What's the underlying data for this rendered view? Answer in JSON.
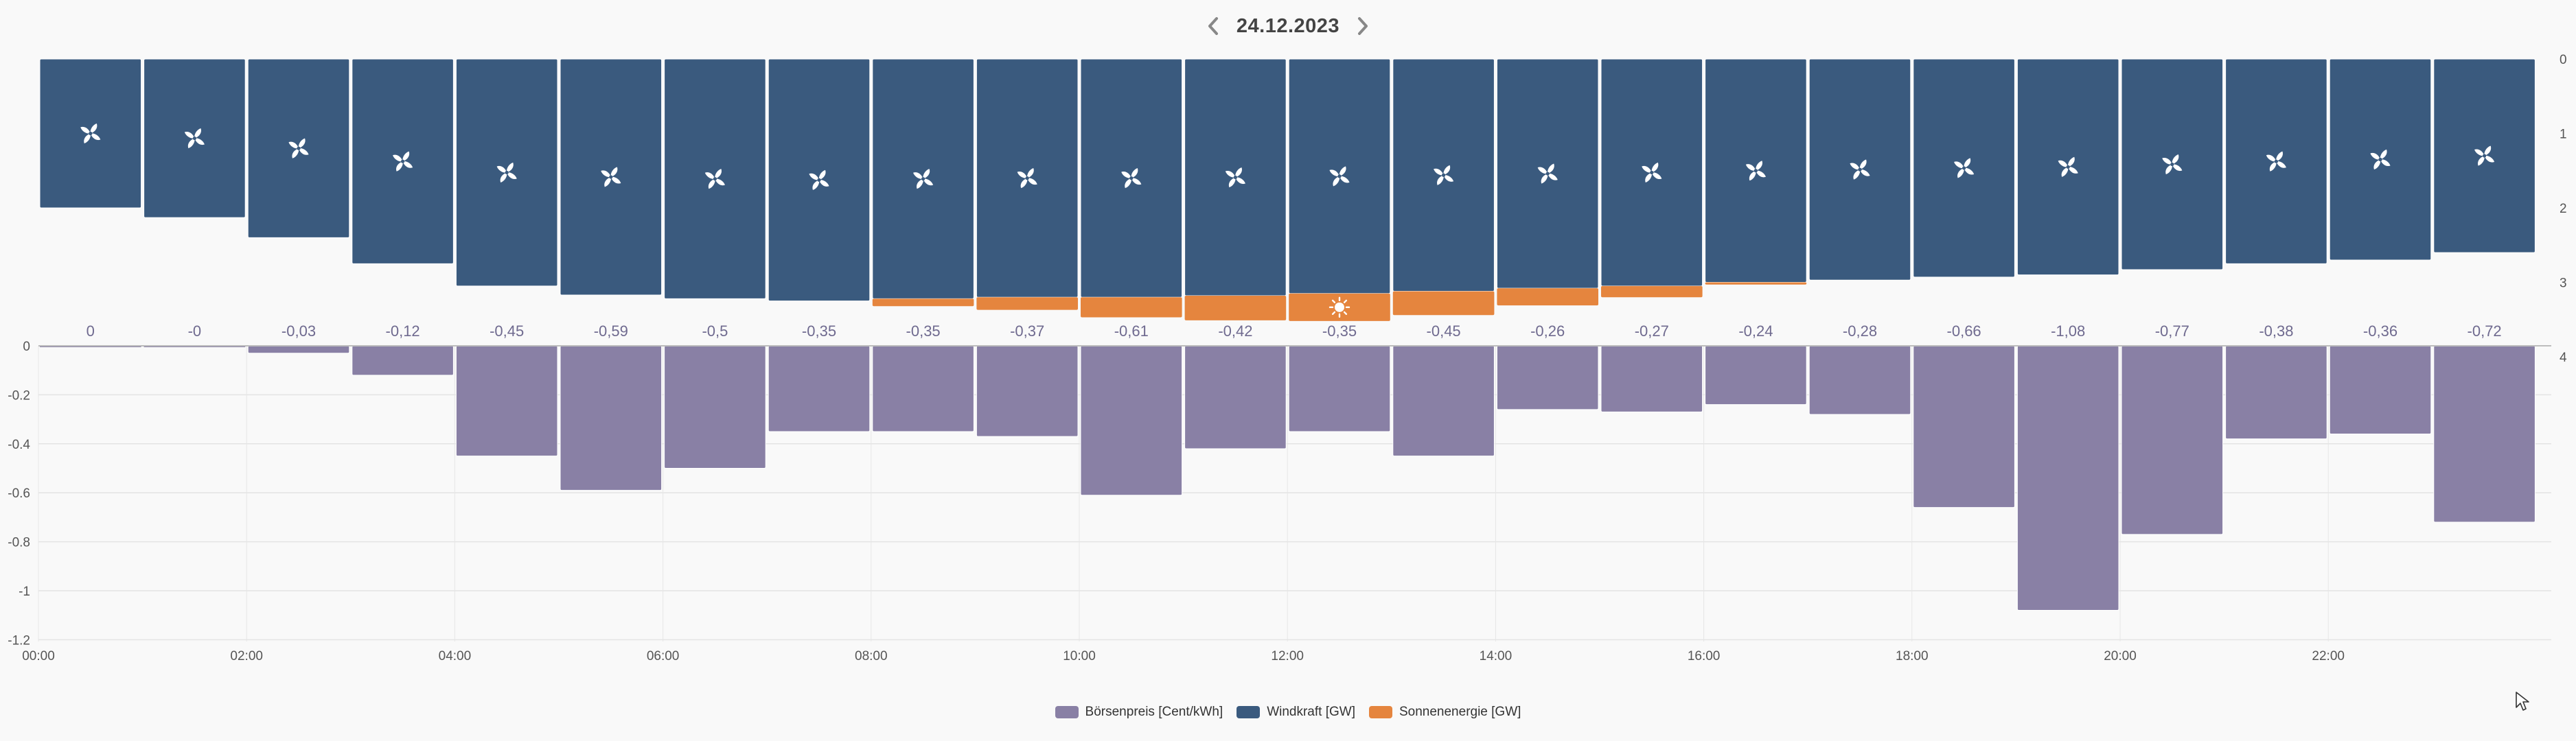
{
  "header": {
    "date": "24.12.2023"
  },
  "chart_data": {
    "type": "bar",
    "categories": [
      "00:00",
      "01:00",
      "02:00",
      "03:00",
      "04:00",
      "05:00",
      "06:00",
      "07:00",
      "08:00",
      "09:00",
      "10:00",
      "11:00",
      "12:00",
      "13:00",
      "14:00",
      "15:00",
      "16:00",
      "17:00",
      "18:00",
      "19:00",
      "20:00",
      "21:00",
      "22:00",
      "23:00"
    ],
    "x_tick_labels": [
      "00:00",
      "02:00",
      "04:00",
      "06:00",
      "08:00",
      "10:00",
      "12:00",
      "14:00",
      "16:00",
      "18:00",
      "20:00",
      "22:00"
    ],
    "series": [
      {
        "name": "Börsenpreis [Cent/kWh]",
        "color": "#8980a5",
        "values": [
          0,
          -0.001,
          -0.03,
          -0.12,
          -0.45,
          -0.59,
          -0.5,
          -0.35,
          -0.35,
          -0.37,
          -0.61,
          -0.42,
          -0.35,
          -0.45,
          -0.26,
          -0.27,
          -0.24,
          -0.28,
          -0.66,
          -1.08,
          -0.77,
          -0.38,
          -0.36,
          -0.72
        ],
        "data_labels": [
          "0",
          "-0",
          "-0,03",
          "-0,12",
          "-0,45",
          "-0,59",
          "-0,5",
          "-0,35",
          "-0,35",
          "-0,37",
          "-0,61",
          "-0,42",
          "-0,35",
          "-0,45",
          "-0,26",
          "-0,27",
          "-0,24",
          "-0,28",
          "-0,66",
          "-1,08",
          "-0,77",
          "-0,38",
          "-0,36",
          "-0,72"
        ],
        "ylim": [
          -1.2,
          0
        ],
        "y_tick_labels": [
          "0",
          "-0.2",
          "-0.4",
          "-0.6",
          "-0.8",
          "-1",
          "-1.2"
        ]
      },
      {
        "name": "Windkraft [GW]",
        "color": "#3a5a7e",
        "values": [
          2.0,
          2.13,
          2.4,
          2.75,
          3.05,
          3.17,
          3.22,
          3.25,
          3.22,
          3.2,
          3.2,
          3.18,
          3.15,
          3.12,
          3.08,
          3.05,
          3.0,
          2.97,
          2.93,
          2.9,
          2.83,
          2.75,
          2.7,
          2.6
        ],
        "icon": "wind-turbine-icon"
      },
      {
        "name": "Sonnenenergie [GW]",
        "color": "#e5853e",
        "values": [
          0,
          0,
          0,
          0,
          0,
          0,
          0,
          0,
          0.1,
          0.17,
          0.27,
          0.33,
          0.37,
          0.32,
          0.23,
          0.15,
          0.03,
          0,
          0,
          0,
          0,
          0,
          0,
          0
        ],
        "icon": "sun-icon"
      }
    ],
    "energy_axis": {
      "ylim": [
        0,
        4
      ],
      "tick_labels": [
        "0",
        "1",
        "2",
        "3",
        "4"
      ]
    },
    "legend_position": "bottom-center",
    "grid": true
  }
}
